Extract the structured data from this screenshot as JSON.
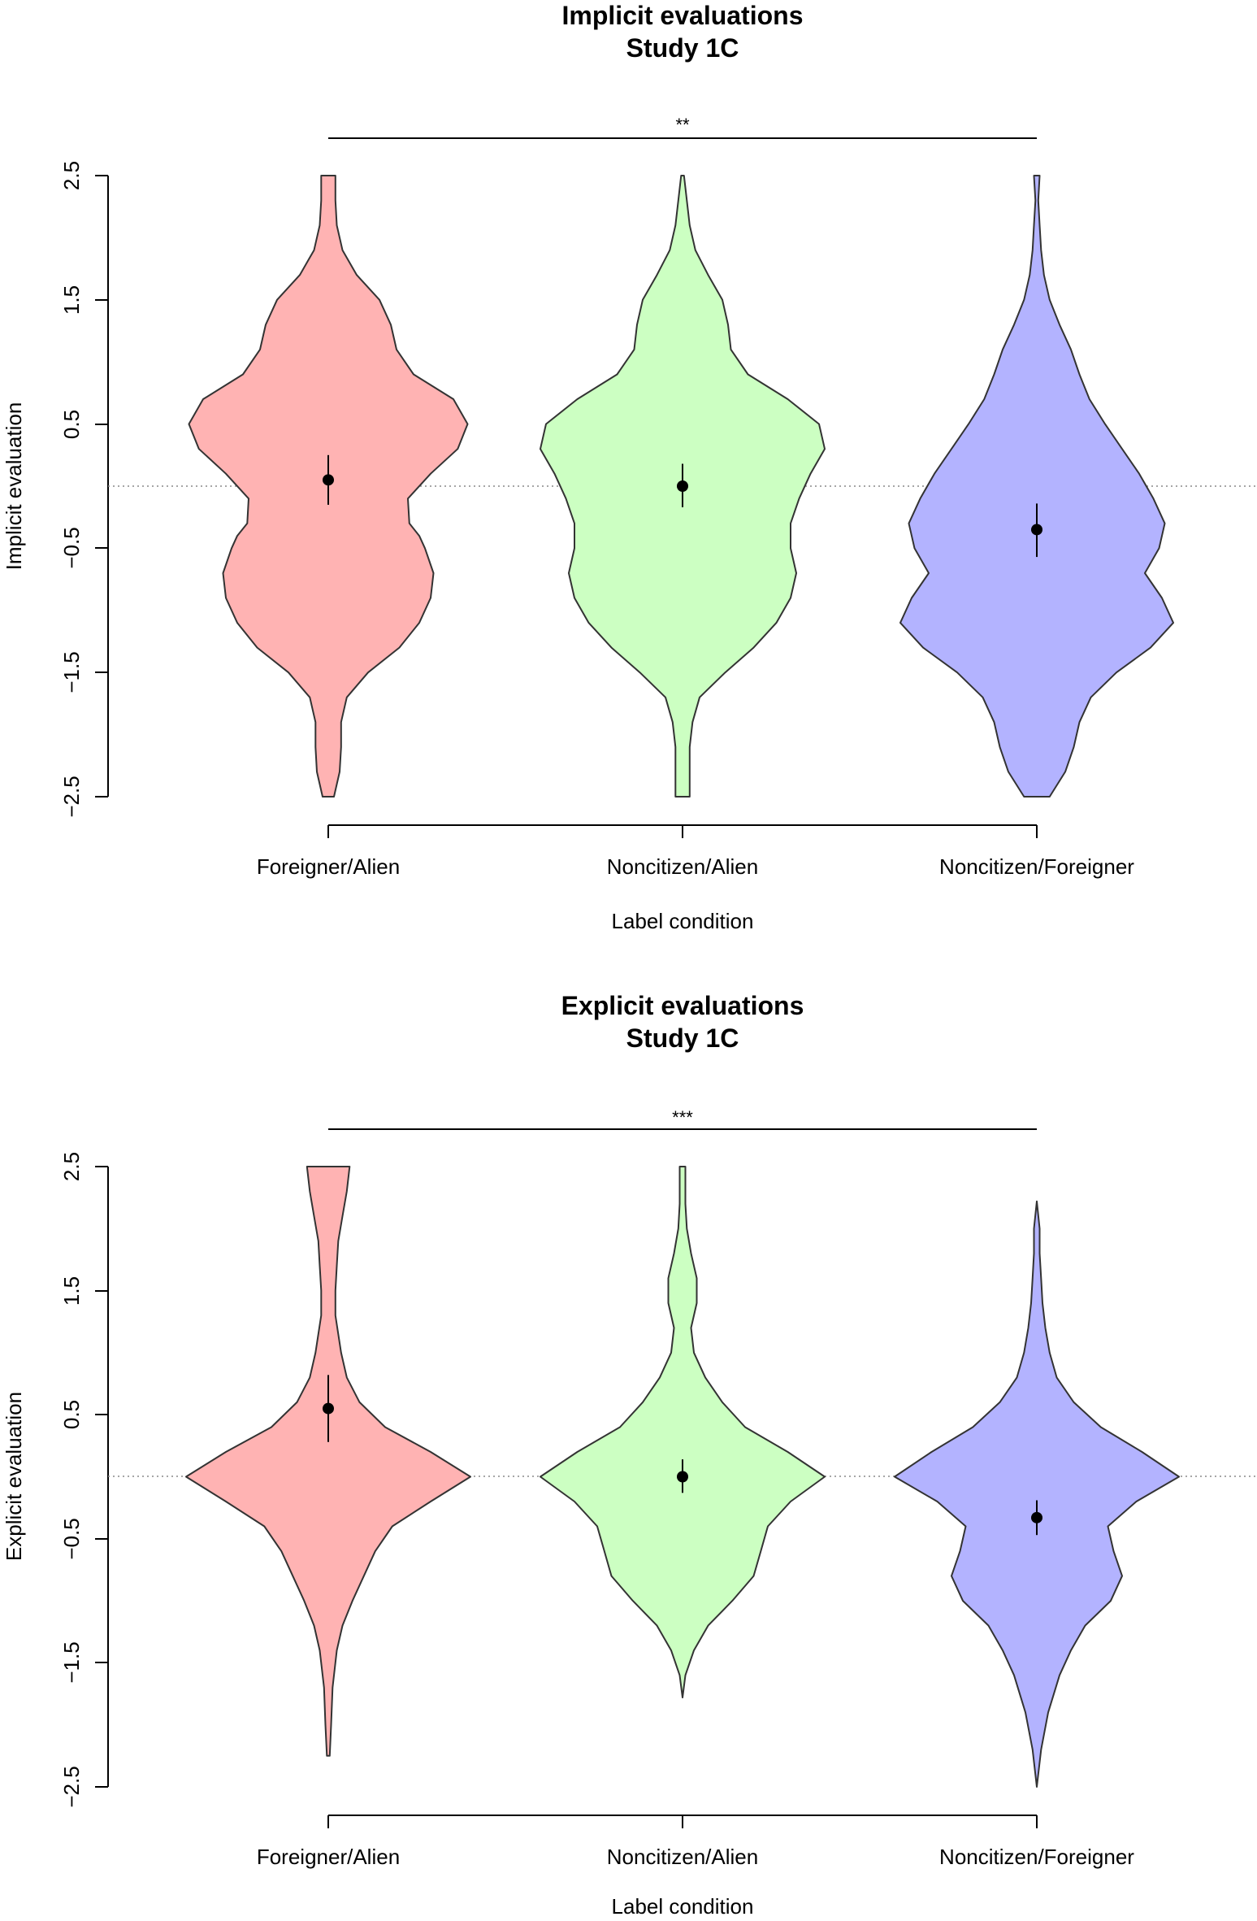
{
  "chart_data": [
    {
      "type": "violin",
      "title": "Implicit evaluations",
      "subtitle": "Study 1C",
      "xlabel": "Label condition",
      "ylabel": "Implicit evaluation",
      "ylim": [
        -2.5,
        2.5
      ],
      "yticks": [
        "-2.5",
        "-1.5",
        "-0.5",
        "0.5",
        "1.5",
        "2.5"
      ],
      "reference_line": 0,
      "significance": {
        "from": "Foreigner/Alien",
        "to": "Noncitizen/Foreigner",
        "label": "**"
      },
      "categories": [
        "Foreigner/Alien",
        "Noncitizen/Alien",
        "Noncitizen/Foreigner"
      ],
      "colors": [
        "#FFB3B3",
        "#CCFFC2",
        "#B3B3FF"
      ],
      "means": [
        0.05,
        0.0,
        -0.35
      ],
      "ci": [
        [
          -0.15,
          0.25
        ],
        [
          -0.17,
          0.18
        ],
        [
          -0.57,
          -0.14
        ]
      ],
      "density": [
        {
          "y": [
            -2.5,
            -2.3,
            -2.1,
            -1.9,
            -1.7,
            -1.5,
            -1.3,
            -1.1,
            -0.9,
            -0.7,
            -0.5,
            -0.4,
            -0.3,
            -0.1,
            0.1,
            0.3,
            0.5,
            0.7,
            0.9,
            1.1,
            1.3,
            1.5,
            1.7,
            1.9,
            2.1,
            2.3,
            2.5
          ],
          "w": [
            0.04,
            0.08,
            0.09,
            0.09,
            0.13,
            0.28,
            0.5,
            0.64,
            0.72,
            0.74,
            0.68,
            0.64,
            0.57,
            0.56,
            0.72,
            0.91,
            0.98,
            0.88,
            0.6,
            0.48,
            0.44,
            0.36,
            0.2,
            0.1,
            0.06,
            0.05,
            0.05
          ]
        },
        {
          "y": [
            -2.5,
            -2.3,
            -2.1,
            -1.9,
            -1.7,
            -1.5,
            -1.3,
            -1.1,
            -0.9,
            -0.7,
            -0.5,
            -0.3,
            -0.1,
            0.1,
            0.3,
            0.5,
            0.7,
            0.9,
            1.1,
            1.3,
            1.5,
            1.7,
            1.9,
            2.1,
            2.3,
            2.5
          ],
          "w": [
            0.05,
            0.05,
            0.05,
            0.07,
            0.12,
            0.3,
            0.5,
            0.66,
            0.76,
            0.8,
            0.76,
            0.76,
            0.82,
            0.9,
            1.0,
            0.96,
            0.74,
            0.46,
            0.34,
            0.32,
            0.28,
            0.18,
            0.09,
            0.05,
            0.03,
            0.01
          ]
        },
        {
          "y": [
            -2.5,
            -2.3,
            -2.1,
            -1.9,
            -1.7,
            -1.5,
            -1.3,
            -1.1,
            -0.9,
            -0.7,
            -0.5,
            -0.3,
            -0.1,
            0.1,
            0.3,
            0.5,
            0.7,
            0.9,
            1.1,
            1.3,
            1.5,
            1.7,
            1.9,
            2.1,
            2.3,
            2.5
          ],
          "w": [
            0.09,
            0.2,
            0.26,
            0.3,
            0.38,
            0.56,
            0.8,
            0.96,
            0.88,
            0.76,
            0.86,
            0.9,
            0.82,
            0.72,
            0.6,
            0.48,
            0.37,
            0.3,
            0.24,
            0.16,
            0.09,
            0.05,
            0.03,
            0.02,
            0.01,
            0.02
          ]
        }
      ]
    },
    {
      "type": "violin",
      "title": "Explicit evaluations",
      "subtitle": "Study 1C",
      "xlabel": "Label condition",
      "ylabel": "Explicit evaluation",
      "ylim": [
        -2.5,
        2.5
      ],
      "yticks": [
        "-2.5",
        "-1.5",
        "-0.5",
        "0.5",
        "1.5",
        "2.5"
      ],
      "reference_line": 0,
      "significance": {
        "from": "Foreigner/Alien",
        "to": "Noncitizen/Foreigner",
        "label": "***"
      },
      "categories": [
        "Foreigner/Alien",
        "Noncitizen/Alien",
        "Noncitizen/Foreigner"
      ],
      "colors": [
        "#FFB3B3",
        "#CCFFC2",
        "#B3B3FF"
      ],
      "means": [
        0.55,
        0.0,
        -0.33
      ],
      "ci": [
        [
          0.28,
          0.82
        ],
        [
          -0.13,
          0.14
        ],
        [
          -0.47,
          -0.19
        ]
      ],
      "density": [
        {
          "y": [
            -2.25,
            -2.0,
            -1.7,
            -1.4,
            -1.2,
            -1.0,
            -0.8,
            -0.6,
            -0.4,
            -0.2,
            0.0,
            0.2,
            0.4,
            0.6,
            0.8,
            1.0,
            1.3,
            1.5,
            1.7,
            1.9,
            2.1,
            2.3,
            2.5
          ],
          "w": [
            0.01,
            0.02,
            0.03,
            0.06,
            0.1,
            0.17,
            0.25,
            0.33,
            0.45,
            0.72,
            1.0,
            0.72,
            0.4,
            0.22,
            0.13,
            0.09,
            0.05,
            0.05,
            0.06,
            0.07,
            0.1,
            0.13,
            0.15
          ]
        },
        {
          "y": [
            -1.78,
            -1.6,
            -1.4,
            -1.2,
            -1.0,
            -0.8,
            -0.6,
            -0.4,
            -0.2,
            0.0,
            0.2,
            0.4,
            0.6,
            0.8,
            1.0,
            1.2,
            1.4,
            1.6,
            1.8,
            2.0,
            2.2,
            2.5
          ],
          "w": [
            0.0,
            0.02,
            0.08,
            0.18,
            0.35,
            0.5,
            0.55,
            0.6,
            0.76,
            1.0,
            0.74,
            0.44,
            0.28,
            0.16,
            0.08,
            0.06,
            0.1,
            0.1,
            0.06,
            0.03,
            0.02,
            0.02
          ]
        },
        {
          "y": [
            -2.5,
            -2.2,
            -1.9,
            -1.6,
            -1.4,
            -1.2,
            -1.0,
            -0.8,
            -0.6,
            -0.4,
            -0.2,
            0.0,
            0.2,
            0.4,
            0.6,
            0.8,
            1.0,
            1.2,
            1.4,
            1.6,
            1.8,
            2.0,
            2.22
          ],
          "w": [
            0.0,
            0.03,
            0.08,
            0.16,
            0.24,
            0.34,
            0.52,
            0.6,
            0.54,
            0.5,
            0.7,
            1.0,
            0.74,
            0.45,
            0.26,
            0.14,
            0.09,
            0.06,
            0.04,
            0.03,
            0.02,
            0.02,
            0.0
          ]
        }
      ]
    }
  ]
}
